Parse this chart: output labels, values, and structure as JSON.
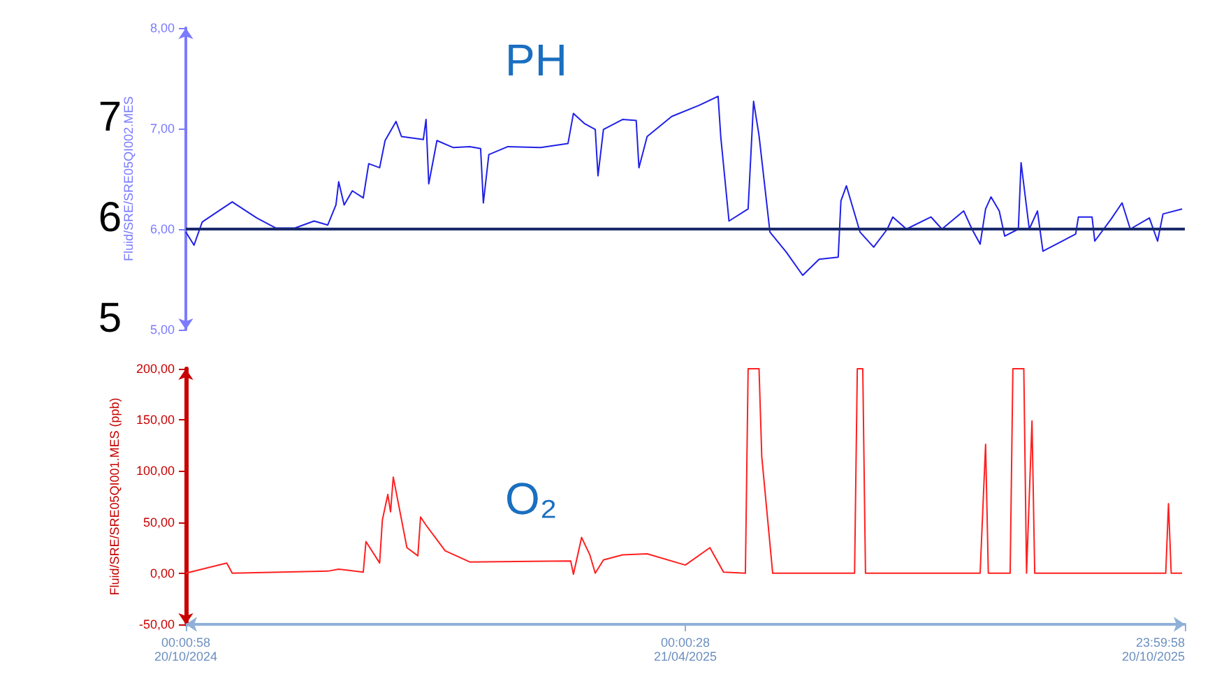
{
  "chart_data": [
    {
      "type": "line",
      "title": "PH",
      "ylabel": "Fluid/SRE/SRE05QI002.MES",
      "tick_labels": "y",
      "xlim": [
        "2024-10-20T00:00",
        "2025-10-20T23:59"
      ],
      "ylim": [
        5,
        8
      ],
      "yticks": [
        {
          "value": 5,
          "label": "5,00"
        },
        {
          "value": 6,
          "label": "6,00"
        },
        {
          "value": 7,
          "label": "7,00"
        },
        {
          "value": 8,
          "label": "8,00"
        }
      ],
      "ref_lines": [
        {
          "axis": "y",
          "value": 6,
          "color": "#1a2a6c"
        }
      ],
      "annotations": [
        "7",
        "6",
        "5"
      ],
      "series": [
        {
          "color": "#2020e8",
          "x": [
            "2024-10-20",
            "2024-10-23",
            "2024-10-26",
            "2024-11-01",
            "2024-11-06",
            "2024-11-15",
            "2024-11-22",
            "2024-11-29",
            "2024-12-06",
            "2024-12-11",
            "2024-12-14",
            "2024-12-15",
            "2024-12-17",
            "2024-12-20",
            "2024-12-24",
            "2024-12-26",
            "2024-12-30",
            "2025-01-01",
            "2025-01-05",
            "2025-01-07",
            "2025-01-15",
            "2025-01-16",
            "2025-01-17",
            "2025-01-20",
            "2025-01-26",
            "2025-02-01",
            "2025-02-05",
            "2025-02-06",
            "2025-02-08",
            "2025-02-15",
            "2025-02-27",
            "2025-03-09",
            "2025-03-11",
            "2025-03-15",
            "2025-03-19",
            "2025-03-20",
            "2025-03-22",
            "2025-03-29",
            "2025-04-03",
            "2025-04-04",
            "2025-04-07",
            "2025-04-16",
            "2025-04-26",
            "2025-05-03",
            "2025-05-04",
            "2025-05-07",
            "2025-05-14",
            "2025-05-16",
            "2025-05-18",
            "2025-05-22",
            "2025-05-28",
            "2025-06-03",
            "2025-06-09",
            "2025-06-16",
            "2025-06-17",
            "2025-06-19",
            "2025-06-24",
            "2025-06-29",
            "2025-07-04",
            "2025-07-06",
            "2025-07-11",
            "2025-07-20",
            "2025-07-24",
            "2025-08-01",
            "2025-08-04",
            "2025-08-07",
            "2025-08-09",
            "2025-08-11",
            "2025-08-14",
            "2025-08-16",
            "2025-08-21",
            "2025-08-22",
            "2025-08-25",
            "2025-08-28",
            "2025-08-30",
            "2025-09-11",
            "2025-09-12",
            "2025-09-17",
            "2025-09-18",
            "2025-09-24",
            "2025-09-28",
            "2025-10-01",
            "2025-10-08",
            "2025-10-11",
            "2025-10-13",
            "2025-10-20"
          ],
          "values": [
            5.97,
            5.84,
            6.07,
            6.18,
            6.27,
            6.11,
            6.01,
            6.01,
            6.08,
            6.04,
            6.24,
            6.47,
            6.24,
            6.38,
            6.31,
            6.65,
            6.61,
            6.88,
            7.07,
            6.92,
            6.89,
            7.09,
            6.45,
            6.88,
            6.81,
            6.82,
            6.8,
            6.26,
            6.74,
            6.82,
            6.81,
            6.85,
            7.15,
            7.05,
            6.99,
            6.53,
            6.99,
            7.09,
            7.08,
            6.61,
            6.92,
            7.12,
            7.23,
            7.32,
            6.91,
            6.08,
            6.2,
            7.27,
            6.93,
            5.97,
            5.77,
            5.54,
            5.7,
            5.72,
            6.28,
            6.43,
            5.97,
            5.82,
            6.0,
            6.12,
            6.0,
            6.12,
            6.0,
            6.18,
            6.0,
            5.85,
            6.2,
            6.32,
            6.18,
            5.93,
            6.0,
            6.66,
            6.0,
            6.18,
            5.78,
            5.95,
            6.12,
            6.12,
            5.88,
            6.1,
            6.26,
            6.0,
            6.11,
            5.88,
            6.15,
            6.2
          ]
        }
      ]
    },
    {
      "type": "line",
      "title": "O₂",
      "ylabel": "Fluid/SRE/SRE05QI001.MES (ppb)",
      "xlim": [
        "2024-10-20T00:00",
        "2025-10-20T23:59"
      ],
      "xticks": [
        {
          "value": "2024-10-20T00:00",
          "label": "00:00:58\n20/10/2024"
        },
        {
          "value": "2025-04-21T00:00",
          "label": "00:00:28\n21/04/2025"
        },
        {
          "value": "2025-10-20T23:59",
          "label": "23:59:58\n20/10/2025"
        }
      ],
      "ylim": [
        -50,
        200
      ],
      "yticks": [
        {
          "value": -50,
          "label": "-50,00"
        },
        {
          "value": 0,
          "label": "0,00"
        },
        {
          "value": 50,
          "label": "50,00"
        },
        {
          "value": 100,
          "label": "100,00"
        },
        {
          "value": 150,
          "label": "150,00"
        },
        {
          "value": 200,
          "label": "200,00"
        }
      ],
      "series": [
        {
          "color": "#ff2020",
          "x": [
            "2024-10-20",
            "2024-11-04",
            "2024-11-06",
            "2024-12-11",
            "2024-12-15",
            "2024-12-24",
            "2024-12-25",
            "2024-12-30",
            "2024-12-31",
            "2025-01-02",
            "2025-01-03",
            "2025-01-04",
            "2025-01-09",
            "2025-01-13",
            "2025-01-14",
            "2025-01-16",
            "2025-01-23",
            "2025-02-01",
            "2025-03-10",
            "2025-03-11",
            "2025-03-14",
            "2025-03-17",
            "2025-03-19",
            "2025-03-22",
            "2025-03-29",
            "2025-04-07",
            "2025-04-21",
            "2025-04-30",
            "2025-05-05",
            "2025-05-13",
            "2025-05-14",
            "2025-05-18",
            "2025-05-19",
            "2025-05-23",
            "2025-06-22",
            "2025-06-23",
            "2025-06-25",
            "2025-06-26",
            "2025-08-07",
            "2025-08-09",
            "2025-08-10",
            "2025-08-18",
            "2025-08-19",
            "2025-08-23",
            "2025-08-24",
            "2025-08-26",
            "2025-08-27",
            "2025-10-14",
            "2025-10-15",
            "2025-10-16",
            "2025-10-20"
          ],
          "values": [
            0,
            10,
            0,
            2,
            4,
            1,
            31,
            10,
            52,
            77,
            60,
            94,
            25,
            17,
            55,
            47,
            22,
            11,
            12,
            -1,
            35,
            18,
            0,
            13,
            18,
            19,
            8,
            25,
            1,
            0,
            200,
            200,
            114,
            0,
            0,
            200,
            200,
            0,
            0,
            126,
            0,
            0,
            200,
            200,
            0,
            149,
            0,
            0,
            68,
            0,
            0
          ]
        }
      ]
    }
  ]
}
